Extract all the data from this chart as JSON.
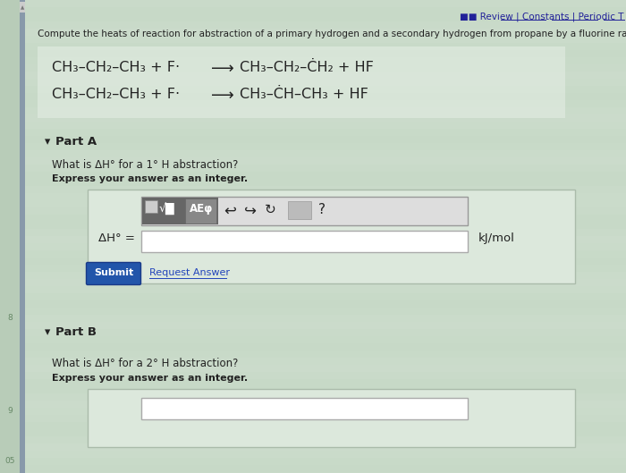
{
  "bg_color": "#ccdccc",
  "white": "#ffffff",
  "dark_text": "#222222",
  "blue_button": "#2255aa",
  "link_color": "#2244bb",
  "top_link_color": "#222299",
  "left_sidebar_color": "#b8ccb8",
  "left_sidebar_dark": "#8899aa",
  "header_text": "Compute the heats of reaction for abstraction of a primary hydrogen and a secondary hydrogen from propane by a fluorine radica",
  "top_links": "■■ Review | Constants | Periodic T",
  "rxn1_left": "CH₃–CH₂–CH₃ + F·",
  "rxn1_right_1": "CH₃–CH₂–",
  "rxn1_right_2": "Ċ",
  "rxn1_right_3": "H₂ + HF",
  "rxn2_left": "CH₃–CH₂–CH₃ + F·",
  "rxn2_right_1": "CH₃–",
  "rxn2_right_2": "Ċ",
  "rxn2_right_3": "H–CH₃ + HF",
  "arrow": "⟶",
  "partA_label": "Part A",
  "partA_question": "What is ΔH° for a 1° H abstraction?",
  "partA_instruction": "Express your answer as an integer.",
  "dH_label": "ΔH° =",
  "unit_label": "kJ/mol",
  "submit_text": "Submit",
  "request_text": "Request Answer",
  "partB_label": "Part B",
  "partB_question": "What is ΔH° for a 2° H abstraction?",
  "partB_instruction": "Express your answer as an integer.",
  "toolbar_dark_bg": "#666666",
  "toolbar_light_bg": "#dddddd",
  "toolbar_border": "#999999",
  "input_border": "#aaaaaa",
  "outer_box_bg": "#d8e8d8",
  "outer_box_border": "#aabbaa"
}
